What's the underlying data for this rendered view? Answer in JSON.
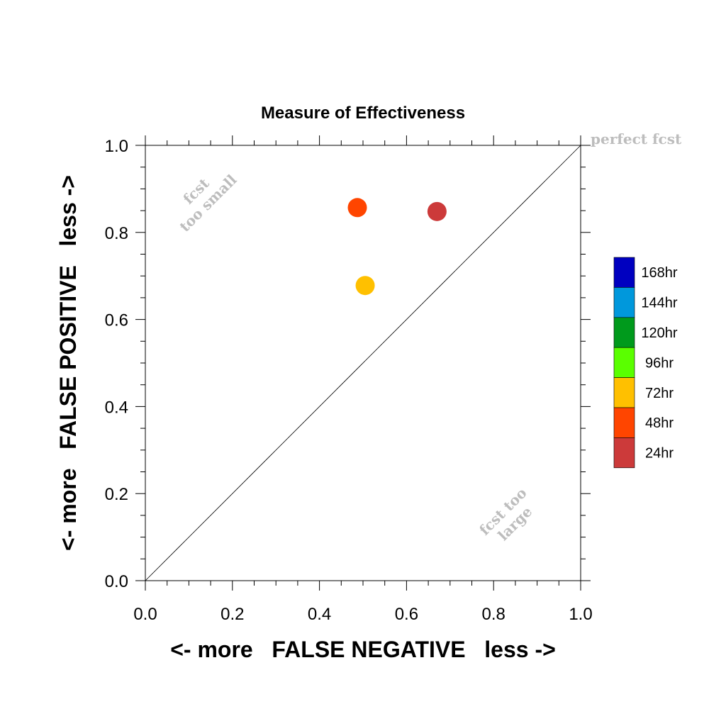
{
  "chart_data": {
    "type": "scatter",
    "title": "Measure of Effectiveness",
    "xlabel": "<- more   FALSE NEGATIVE   less ->",
    "ylabel": "<- more   FALSE POSITIVE   less ->",
    "xlim": [
      0.0,
      1.0
    ],
    "ylim": [
      0.0,
      1.0
    ],
    "x_ticks": [
      "0.0",
      "0.2",
      "0.4",
      "0.6",
      "0.8",
      "1.0"
    ],
    "y_ticks": [
      "0.0",
      "0.2",
      "0.4",
      "0.6",
      "0.8",
      "1.0"
    ],
    "grid": false,
    "diagonal": true,
    "points": [
      {
        "x": 0.67,
        "y": 0.848,
        "color": "#cc3a3a"
      },
      {
        "x": 0.487,
        "y": 0.857,
        "color": "#ff4500"
      },
      {
        "x": 0.505,
        "y": 0.678,
        "color": "#ffc000"
      }
    ],
    "annotations": {
      "perfect": "perfect fcst",
      "small_line1": "fcst",
      "small_line2": "too small",
      "large_line1": "fcst too",
      "large_line2": "large"
    },
    "legend": {
      "placement": "right",
      "entries": [
        {
          "label": "168hr",
          "color": "#0000c0"
        },
        {
          "label": "144hr",
          "color": "#0098dc"
        },
        {
          "label": "120hr",
          "color": "#009a1c"
        },
        {
          "label": "96hr",
          "color": "#5aff00"
        },
        {
          "label": "72hr",
          "color": "#ffc000"
        },
        {
          "label": "48hr",
          "color": "#ff4500"
        },
        {
          "label": "24hr",
          "color": "#cc3a3a"
        }
      ]
    }
  }
}
